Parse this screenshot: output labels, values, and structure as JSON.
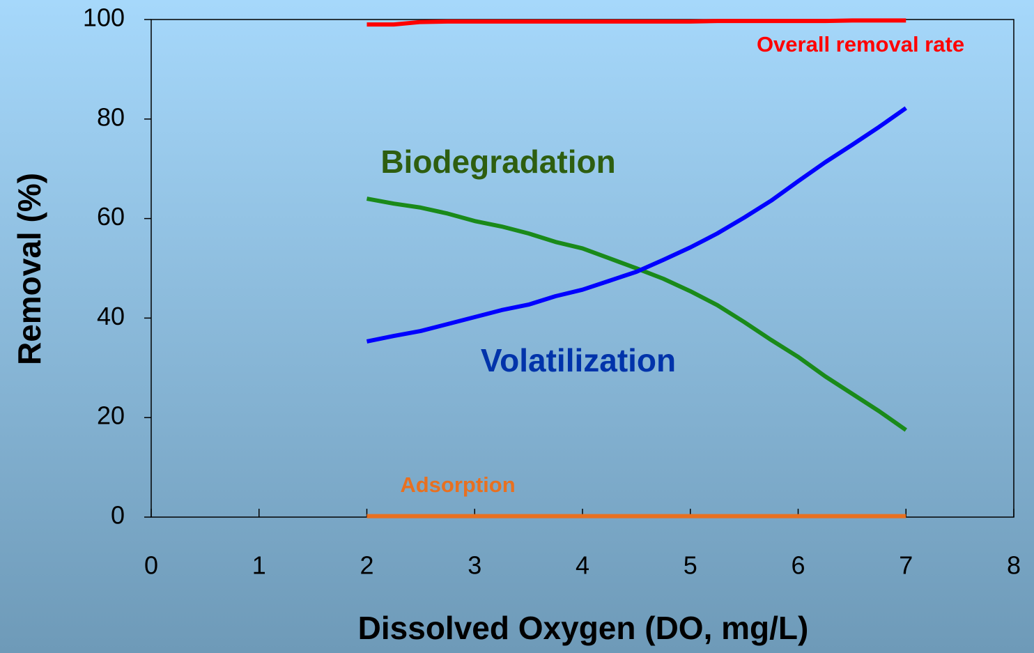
{
  "chart_data": {
    "type": "line",
    "x_label": "Dissolved Oxygen (DO, mg/L)",
    "y_label": "Removal (%)",
    "x": [
      2,
      2.25,
      2.5,
      2.75,
      3,
      3.25,
      3.5,
      3.75,
      4,
      4.25,
      4.5,
      4.75,
      5,
      5.25,
      5.5,
      5.75,
      6,
      6.25,
      6.5,
      6.75,
      7
    ],
    "series": [
      {
        "name": "Overall removal rate",
        "color": "#ff0000",
        "values": [
          99,
          99,
          99.5,
          99.6,
          99.6,
          99.6,
          99.6,
          99.6,
          99.6,
          99.6,
          99.6,
          99.6,
          99.6,
          99.7,
          99.7,
          99.7,
          99.7,
          99.7,
          99.8,
          99.8,
          99.8
        ]
      },
      {
        "name": "Biodegradation",
        "color": "#1a8a1a",
        "values": [
          64,
          63,
          62.2,
          61,
          59.5,
          58.4,
          57,
          55.3,
          54,
          52,
          50,
          47.9,
          45.4,
          42.6,
          39.2,
          35.6,
          32.2,
          28.3,
          24.8,
          21.3,
          17.5
        ]
      },
      {
        "name": "Volatilization",
        "color": "#0000ff",
        "values": [
          35.3,
          36.4,
          37.4,
          38.8,
          40.2,
          41.6,
          42.7,
          44.4,
          45.7,
          47.5,
          49.3,
          51.7,
          54.2,
          57,
          60.2,
          63.6,
          67.5,
          71.3,
          74.8,
          78.4,
          82.2
        ]
      },
      {
        "name": "Adsorption",
        "color": "#e87020",
        "values": [
          0.2,
          0.2,
          0.2,
          0.2,
          0.2,
          0.2,
          0.2,
          0.2,
          0.2,
          0.2,
          0.2,
          0.2,
          0.2,
          0.2,
          0.2,
          0.2,
          0.2,
          0.2,
          0.2,
          0.2,
          0.2
        ]
      }
    ],
    "xlim": [
      0,
      8
    ],
    "xticks": [
      0,
      1,
      2,
      3,
      4,
      5,
      6,
      7,
      8
    ],
    "ylim": [
      0,
      100
    ],
    "yticks": [
      0,
      20,
      40,
      60,
      80,
      100
    ]
  }
}
